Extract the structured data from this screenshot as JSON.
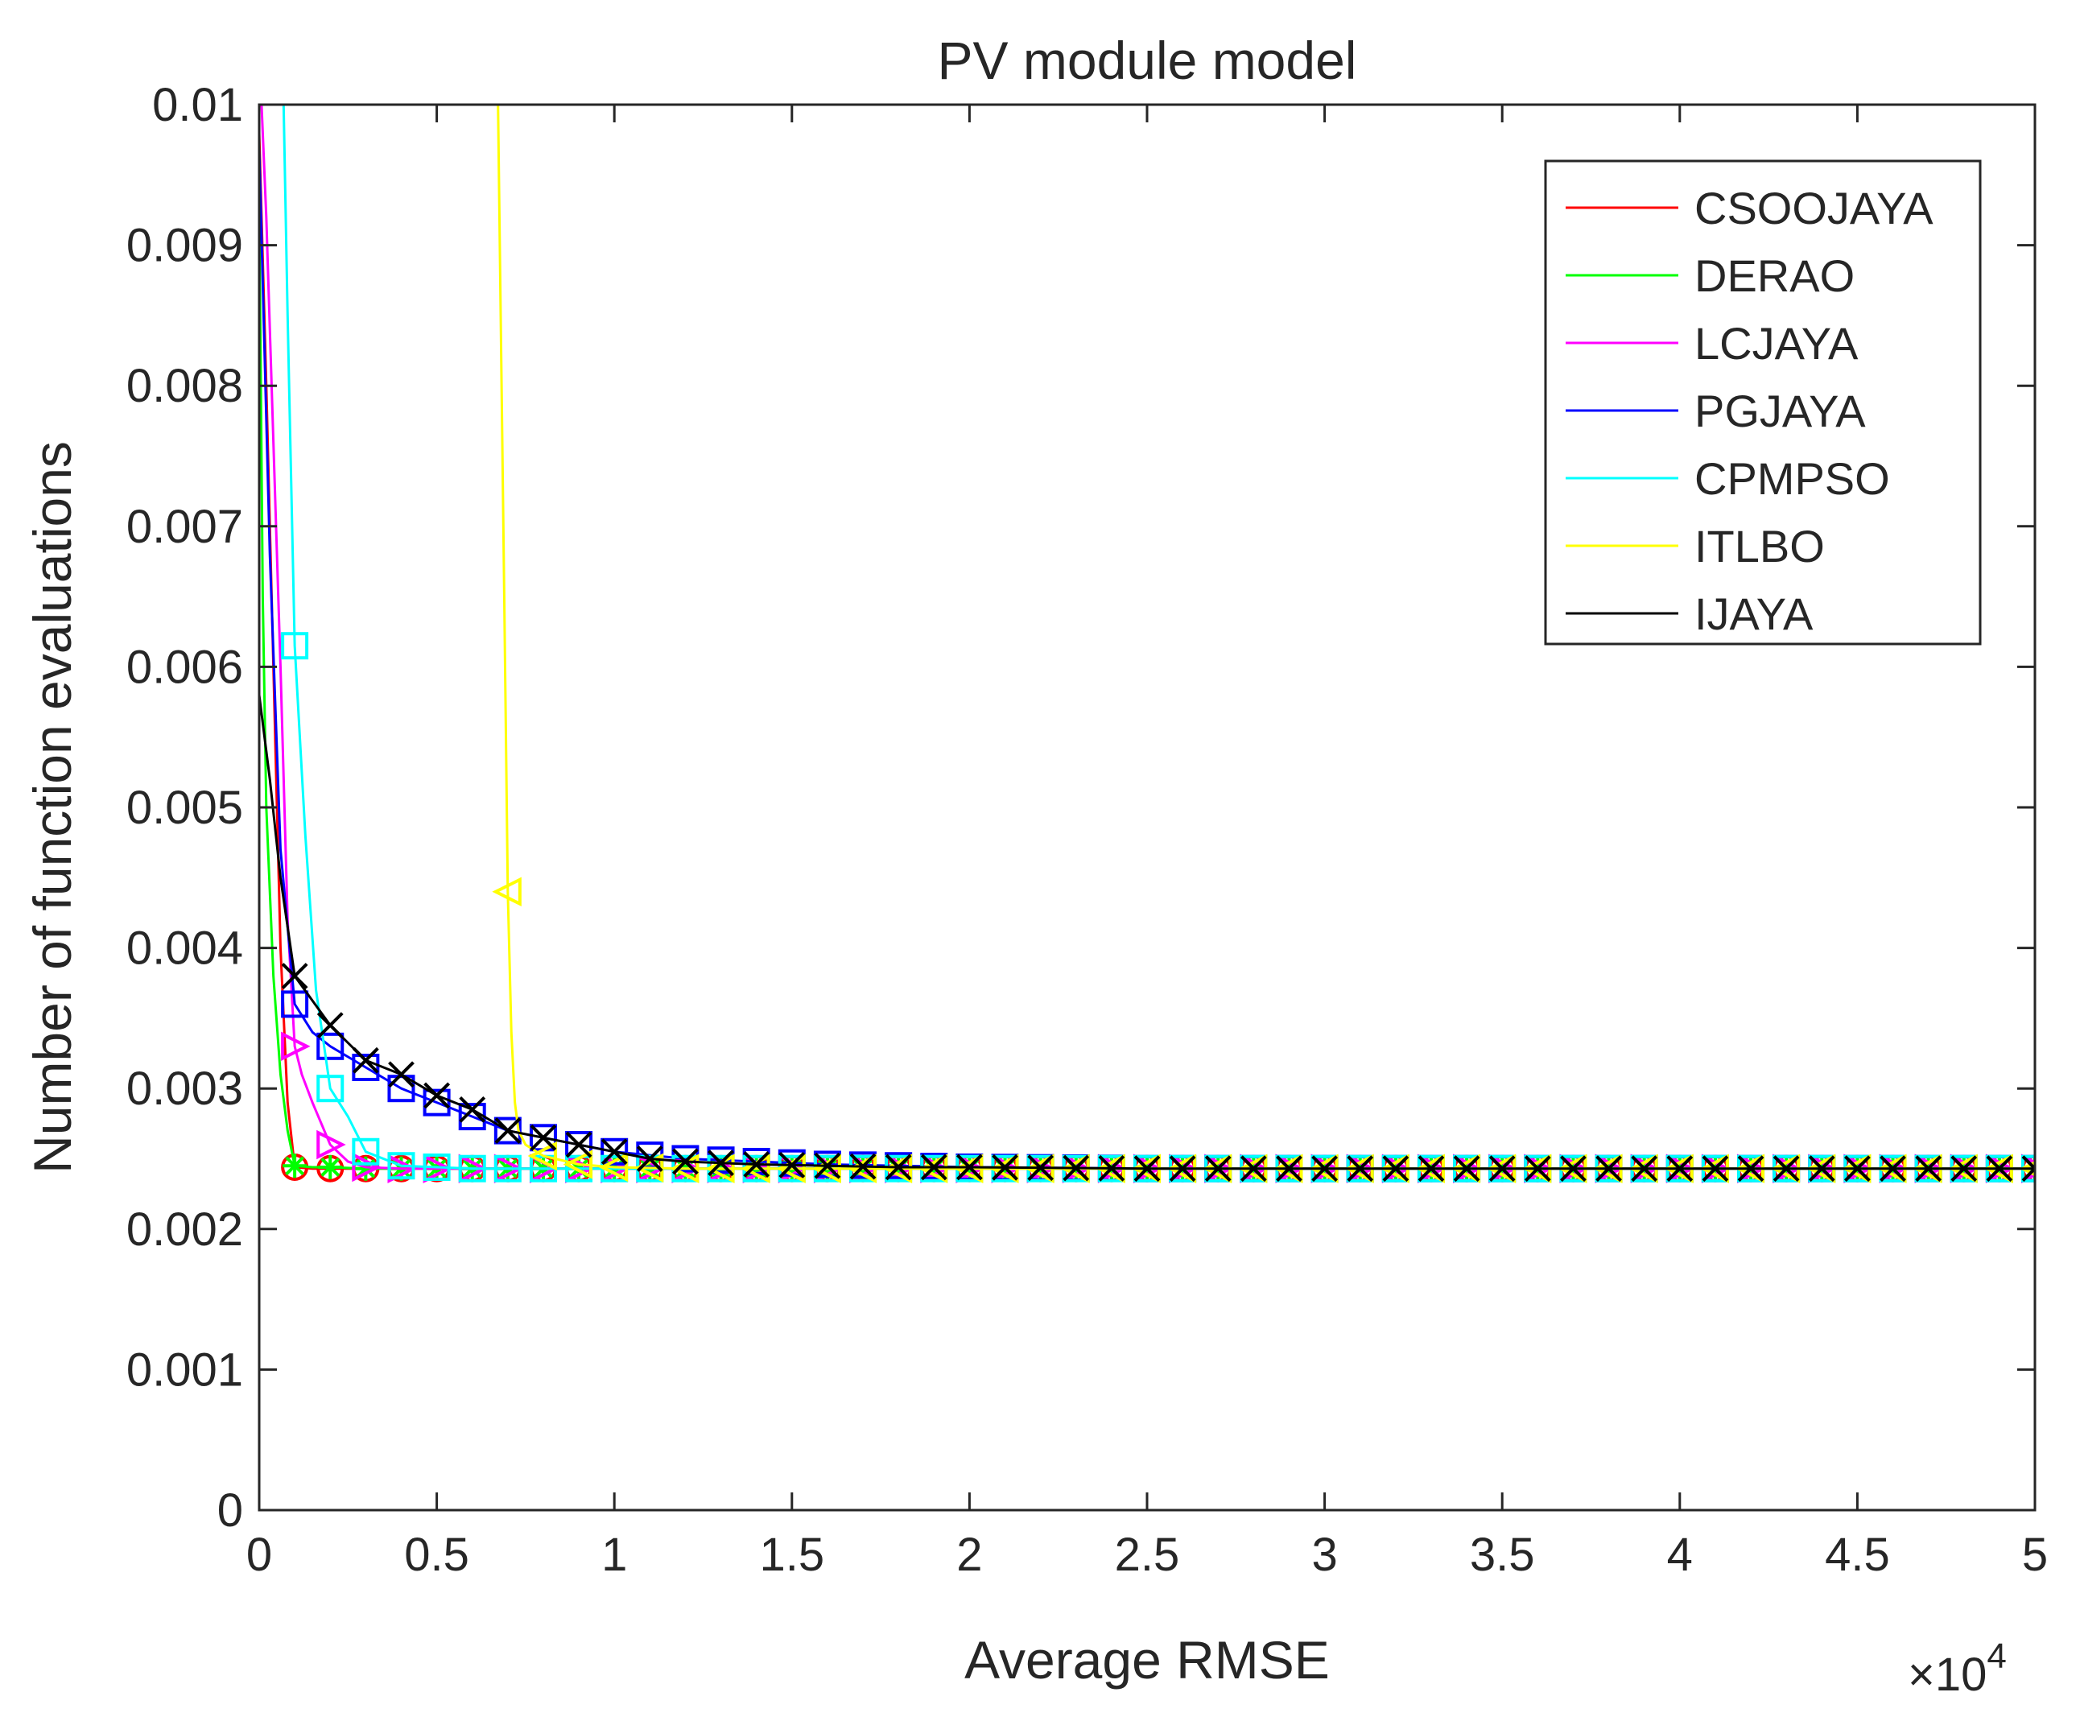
{
  "chart_data": {
    "type": "line",
    "title": "PV module model",
    "xlabel": "Average RMSE",
    "ylabel": "Number of function evaluations",
    "x_exponent_label": "×10",
    "x_exponent_power": "4",
    "xlim": [
      0,
      5
    ],
    "ylim": [
      0,
      0.01
    ],
    "x_ticks": [
      "0",
      "0.5",
      "1",
      "1.5",
      "2",
      "2.5",
      "3",
      "3.5",
      "4",
      "4.5",
      "5"
    ],
    "y_ticks": [
      "0",
      "0.001",
      "0.002",
      "0.003",
      "0.004",
      "0.005",
      "0.006",
      "0.007",
      "0.008",
      "0.009",
      "0.01"
    ],
    "grid": false,
    "legend_position": "top-right",
    "series": [
      {
        "name": "CSOOJAYA",
        "color": "#ff0000",
        "marker": "circle",
        "x": [
          0.0,
          0.02,
          0.04,
          0.06,
          0.08,
          0.1,
          0.15,
          0.2,
          0.3,
          0.4,
          0.5,
          0.6,
          0.8,
          1.0,
          1.2,
          1.5,
          2.0,
          2.5,
          3.0,
          3.5,
          4.0,
          4.5,
          5.0
        ],
        "y": [
          0.0098,
          0.008,
          0.006,
          0.004,
          0.0029,
          0.00244,
          0.00243,
          0.00243,
          0.00243,
          0.00243,
          0.00243,
          0.00243,
          0.00243,
          0.00243,
          0.00243,
          0.00243,
          0.00243,
          0.00243,
          0.00243,
          0.00243,
          0.00243,
          0.00243,
          0.00243
        ]
      },
      {
        "name": "DERAO",
        "color": "#00ff00",
        "marker": "asterisk",
        "x": [
          0.0,
          0.01,
          0.02,
          0.04,
          0.06,
          0.08,
          0.1,
          0.15,
          0.2,
          0.3,
          0.5,
          1.0,
          1.5,
          2.0,
          2.5,
          3.0,
          3.5,
          4.0,
          4.5,
          5.0
        ],
        "y": [
          0.0093,
          0.0065,
          0.005,
          0.0038,
          0.0031,
          0.0027,
          0.00245,
          0.00244,
          0.00244,
          0.00243,
          0.00243,
          0.00243,
          0.00243,
          0.00243,
          0.00243,
          0.00243,
          0.00243,
          0.00243,
          0.00243,
          0.00243
        ]
      },
      {
        "name": "LCJAYA",
        "color": "#ff00ff",
        "marker": "triangle-right",
        "x": [
          0.0,
          0.02,
          0.04,
          0.06,
          0.08,
          0.1,
          0.12,
          0.15,
          0.2,
          0.25,
          0.3,
          0.4,
          0.5,
          0.7,
          1.0,
          1.5,
          2.0,
          2.5,
          3.0,
          3.5,
          4.0,
          4.5,
          5.0
        ],
        "y": [
          0.0104,
          0.0092,
          0.0076,
          0.006,
          0.0042,
          0.0033,
          0.0031,
          0.0029,
          0.0026,
          0.00248,
          0.00244,
          0.00243,
          0.00243,
          0.00243,
          0.00243,
          0.00243,
          0.00243,
          0.00243,
          0.00243,
          0.00243,
          0.00243,
          0.00243,
          0.00243
        ]
      },
      {
        "name": "PGJAYA",
        "color": "#0000ff",
        "marker": "square",
        "x": [
          0.0,
          0.03,
          0.06,
          0.1,
          0.15,
          0.2,
          0.3,
          0.4,
          0.5,
          0.6,
          0.7,
          0.8,
          0.9,
          1.0,
          1.2,
          1.4,
          1.6,
          1.8,
          2.0,
          2.5,
          3.0,
          3.5,
          4.0,
          4.5,
          5.0
        ],
        "y": [
          0.0097,
          0.0068,
          0.0047,
          0.0036,
          0.0034,
          0.0033,
          0.00315,
          0.003,
          0.0029,
          0.0028,
          0.0027,
          0.00265,
          0.0026,
          0.00255,
          0.0025,
          0.00248,
          0.00246,
          0.00245,
          0.00244,
          0.00243,
          0.00243,
          0.00243,
          0.00243,
          0.00243,
          0.00243
        ]
      },
      {
        "name": "CPMPSO",
        "color": "#00ffff",
        "marker": "square",
        "x": [
          0.065,
          0.08,
          0.1,
          0.13,
          0.16,
          0.2,
          0.25,
          0.3,
          0.4,
          0.5,
          0.6,
          0.8,
          1.0,
          1.5,
          2.0,
          2.5,
          3.0,
          3.5,
          4.0,
          4.5,
          5.0
        ],
        "y": [
          0.0105,
          0.0085,
          0.00615,
          0.0048,
          0.0037,
          0.003,
          0.0028,
          0.00255,
          0.00245,
          0.00244,
          0.00243,
          0.00243,
          0.00243,
          0.00243,
          0.00243,
          0.00243,
          0.00243,
          0.00243,
          0.00243,
          0.00243,
          0.00243
        ]
      },
      {
        "name": "ITLBO",
        "color": "#ffff00",
        "marker": "triangle-left",
        "x": [
          0.67,
          0.68,
          0.69,
          0.7,
          0.71,
          0.72,
          0.73,
          0.75,
          0.8,
          0.9,
          1.0,
          1.2,
          1.5,
          2.0,
          2.5,
          3.0,
          3.5,
          4.0,
          4.5,
          5.0
        ],
        "y": [
          0.0105,
          0.0085,
          0.0065,
          0.0044,
          0.0034,
          0.0029,
          0.0027,
          0.0026,
          0.00252,
          0.00246,
          0.00244,
          0.00243,
          0.00243,
          0.00243,
          0.00243,
          0.00243,
          0.00243,
          0.00243,
          0.00243,
          0.00243
        ]
      },
      {
        "name": "IJAYA",
        "color": "#000000",
        "marker": "x",
        "x": [
          0.0,
          0.03,
          0.06,
          0.1,
          0.2,
          0.3,
          0.4,
          0.5,
          0.6,
          0.7,
          0.8,
          0.9,
          1.0,
          1.1,
          1.2,
          1.4,
          1.6,
          1.8,
          2.0,
          2.5,
          3.0,
          3.5,
          4.0,
          4.5,
          5.0
        ],
        "y": [
          0.0058,
          0.0052,
          0.0045,
          0.0038,
          0.00345,
          0.0032,
          0.0031,
          0.00295,
          0.00285,
          0.0027,
          0.00265,
          0.0026,
          0.00255,
          0.0025,
          0.00248,
          0.00246,
          0.00245,
          0.00244,
          0.00244,
          0.00243,
          0.00243,
          0.00243,
          0.00243,
          0.00243,
          0.00243
        ]
      }
    ]
  }
}
